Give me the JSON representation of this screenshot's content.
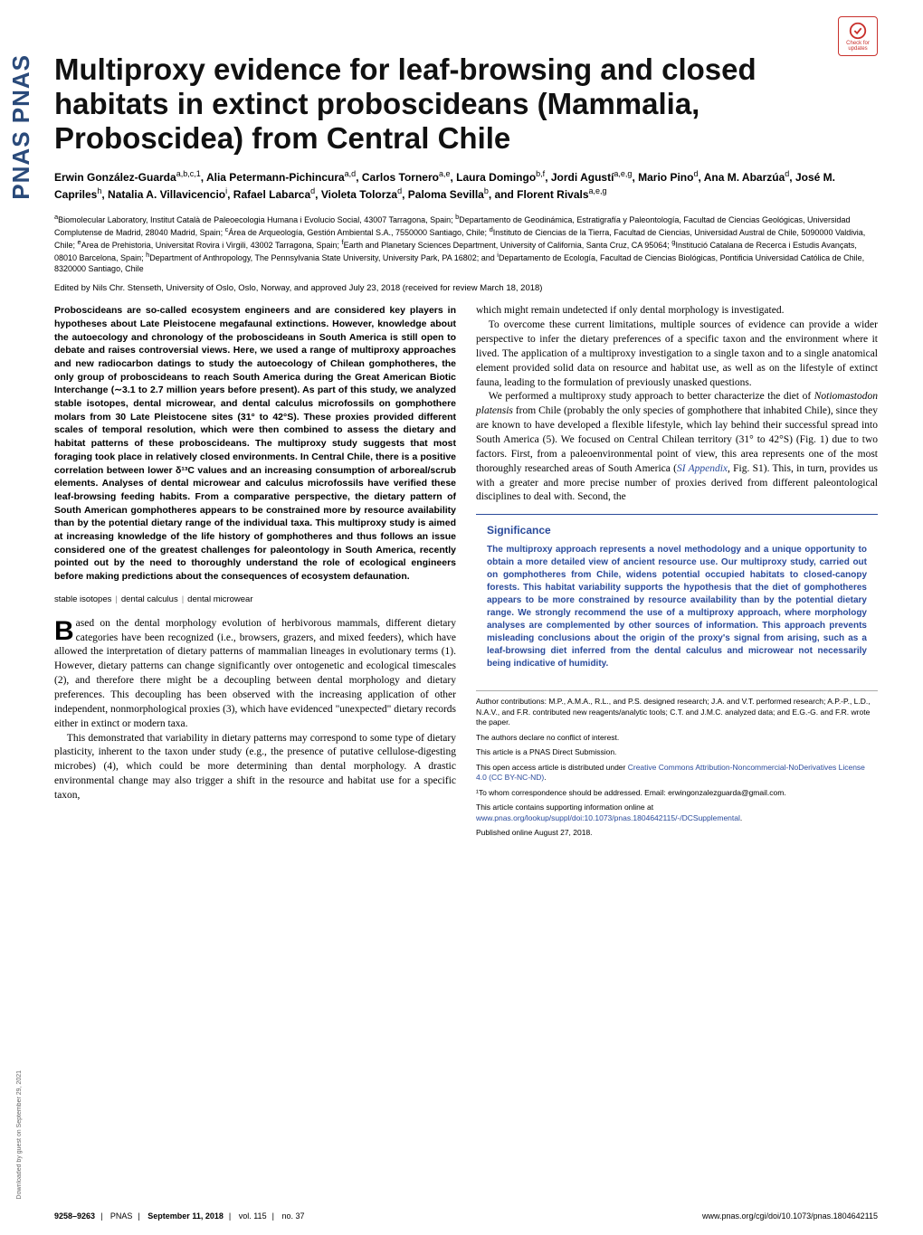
{
  "journal_side": "PNAS PNAS",
  "download_note": "Downloaded by guest on September 29, 2021",
  "check_updates_label": "Check for updates",
  "title": "Multiproxy evidence for leaf-browsing and closed habitats in extinct proboscideans (Mammalia, Proboscidea) from Central Chile",
  "authors_html": "Erwin González-Guarda<sup>a,b,c,1</sup>, Alia Petermann-Pichincura<sup>a,d</sup>, Carlos Tornero<sup>a,e</sup>, Laura Domingo<sup>b,f</sup>, Jordi Agustí<sup>a,e,g</sup>, Mario Pino<sup>d</sup>, Ana M. Abarzúa<sup>d</sup>, José M. Capriles<sup>h</sup>, Natalia A. Villavicencio<sup>i</sup>, Rafael Labarca<sup>d</sup>, Violeta Tolorza<sup>d</sup>, Paloma Sevilla<sup>b</sup>, and Florent Rivals<sup>a,e,g</sup>",
  "affiliations_html": "<sup>a</sup>Biomolecular Laboratory, Institut Català de Paleoecologia Humana i Evolucio Social, 43007 Tarragona, Spain; <sup>b</sup>Departamento de Geodinámica, Estratigrafía y Paleontología, Facultad de Ciencias Geológicas, Universidad Complutense de Madrid, 28040 Madrid, Spain; <sup>c</sup>Área de Arqueología, Gestión Ambiental S.A., 7550000 Santiago, Chile; <sup>d</sup>Instituto de Ciencias de la Tierra, Facultad de Ciencias, Universidad Austral de Chile, 5090000 Valdivia, Chile; <sup>e</sup>Area de Prehistoria, Universitat Rovira i Virgili, 43002 Tarragona, Spain; <sup>f</sup>Earth and Planetary Sciences Department, University of California, Santa Cruz, CA 95064; <sup>g</sup>Institució Catalana de Recerca i Estudis Avançats, 08010 Barcelona, Spain; <sup>h</sup>Department of Anthropology, The Pennsylvania State University, University Park, PA 16802; and <sup>i</sup>Departamento de Ecología, Facultad de Ciencias Biológicas, Pontificia Universidad Católica de Chile, 8320000 Santiago, Chile",
  "edited_by": "Edited by Nils Chr. Stenseth, University of Oslo, Oslo, Norway, and approved July 23, 2018 (received for review March 18, 2018)",
  "abstract": "Proboscideans are so-called ecosystem engineers and are considered key players in hypotheses about Late Pleistocene megafaunal extinctions. However, knowledge about the autoecology and chronology of the proboscideans in South America is still open to debate and raises controversial views. Here, we used a range of multiproxy approaches and new radiocarbon datings to study the autoecology of Chilean gomphotheres, the only group of proboscideans to reach South America during the Great American Biotic Interchange (∼3.1 to 2.7 million years before present). As part of this study, we analyzed stable isotopes, dental microwear, and dental calculus microfossils on gomphothere molars from 30 Late Pleistocene sites (31° to 42°S). These proxies provided different scales of temporal resolution, which were then combined to assess the dietary and habitat patterns of these proboscideans. The multiproxy study suggests that most foraging took place in relatively closed environments. In Central Chile, there is a positive correlation between lower δ¹³C values and an increasing consumption of arboreal/scrub elements. Analyses of dental microwear and calculus microfossils have verified these leaf-browsing feeding habits. From a comparative perspective, the dietary pattern of South American gomphotheres appears to be constrained more by resource availability than by the potential dietary range of the individual taxa. This multiproxy study is aimed at increasing knowledge of the life history of gomphotheres and thus follows an issue considered one of the greatest challenges for paleontology in South America, recently pointed out by the need to thoroughly understand the role of ecological engineers before making predictions about the consequences of ecosystem defaunation.",
  "keywords": [
    "stable isotopes",
    "dental calculus",
    "dental microwear"
  ],
  "intro_p1": "ased on the dental morphology evolution of herbivorous mammals, different dietary categories have been recognized (i.e., browsers, grazers, and mixed feeders), which have allowed the interpretation of dietary patterns of mammalian lineages in evolutionary terms (1). However, dietary patterns can change significantly over ontogenetic and ecological timescales (2), and therefore there might be a decoupling between dental morphology and dietary preferences. This decoupling has been observed with the increasing application of other independent, nonmorphological proxies (3), which have evidenced \"unexpected\" dietary records either in extinct or modern taxa.",
  "intro_p2": "This demonstrated that variability in dietary patterns may correspond to some type of dietary plasticity, inherent to the taxon under study (e.g., the presence of putative cellulose-digesting microbes) (4), which could be more determining than dental morphology. A drastic environmental change may also trigger a shift in the resource and habitat use for a specific taxon,",
  "right_p1": "which might remain undetected if only dental morphology is investigated.",
  "right_p2": "To overcome these current limitations, multiple sources of evidence can provide a wider perspective to infer the dietary preferences of a specific taxon and the environment where it lived. The application of a multiproxy investigation to a single taxon and to a single anatomical element provided solid data on resource and habitat use, as well as on the lifestyle of extinct fauna, leading to the formulation of previously unasked questions.",
  "right_p3_pre": "We performed a multiproxy study approach to better characterize the diet of ",
  "right_p3_species": "Notiomastodon platensis",
  "right_p3_post": " from Chile (probably the only species of gomphothere that inhabited Chile), since they are known to have developed a flexible lifestyle, which lay behind their successful spread into South America (5). We focused on Central Chilean territory (31° to 42°S) (Fig. 1) due to two factors. First, from a paleoenvironmental point of view, this area represents one of the most thoroughly researched areas of South America (",
  "right_p3_link": "SI Appendix",
  "right_p3_fig": ", Fig. S1",
  "right_p3_end": "). This, in turn, provides us with a greater and more precise number of proxies derived from different paleontological disciplines to deal with. Second, the",
  "significance_title": "Significance",
  "significance_body": "The multiproxy approach represents a novel methodology and a unique opportunity to obtain a more detailed view of ancient resource use. Our multiproxy study, carried out on gomphotheres from Chile, widens potential occupied habitats to closed-canopy forests. This habitat variability supports the hypothesis that the diet of gomphotheres appears to be more constrained by resource availability than by the potential dietary range. We strongly recommend the use of a multiproxy approach, where morphology analyses are complemented by other sources of information. This approach prevents misleading conclusions about the origin of the proxy's signal from arising, such as a leaf-browsing diet inferred from the dental calculus and microwear not necessarily being indicative of humidity.",
  "fn_contributions": "Author contributions: M.P., A.M.A., R.L., and P.S. designed research; J.A. and V.T. performed research; A.P.-P., L.D., N.A.V., and F.R. contributed new reagents/analytic tools; C.T. and J.M.C. analyzed data; and E.G.-G. and F.R. wrote the paper.",
  "fn_conflict": "The authors declare no conflict of interest.",
  "fn_direct": "This article is a PNAS Direct Submission.",
  "fn_license_pre": "This open access article is distributed under ",
  "fn_license_link": "Creative Commons Attribution-Noncommercial-NoDerivatives License 4.0 (CC BY-NC-ND)",
  "fn_license_post": ".",
  "fn_corresponding": "¹To whom correspondence should be addressed. Email: erwingonzalezguarda@gmail.com.",
  "fn_supporting_pre": "This article contains supporting information online at ",
  "fn_supporting_link": "www.pnas.org/lookup/suppl/doi:10.1073/pnas.1804642115/-/DCSupplemental",
  "fn_supporting_post": ".",
  "fn_published": "Published online August 27, 2018.",
  "footer": {
    "pages": "9258–9263",
    "journal": "PNAS",
    "date": "September 11, 2018",
    "volume": "vol. 115",
    "issue": "no. 37",
    "doi": "www.pnas.org/cgi/doi/10.1073/pnas.1804642115"
  },
  "colors": {
    "link": "#2a4a9a",
    "brand": "#2a4a7a",
    "check": "#c9302c"
  }
}
